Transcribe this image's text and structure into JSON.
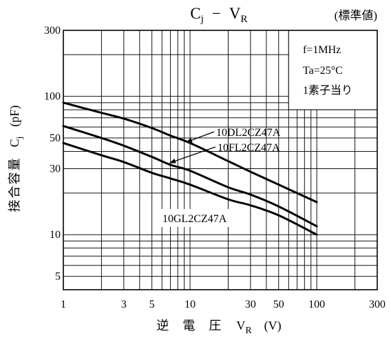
{
  "chart_data": {
    "type": "line",
    "title": {
      "symbol": "C",
      "symbol_sub": "j",
      "dash": "−",
      "variable": "V",
      "variable_sub": "R"
    },
    "subtitle": "(標準値)",
    "xlabel": {
      "text": "逆電圧",
      "symbol": "V",
      "symbol_sub": "R",
      "unit": "(V)"
    },
    "ylabel": {
      "text": "接合容量",
      "symbol": "C",
      "symbol_sub": "j",
      "unit": "(pF)"
    },
    "x_scale": "log",
    "y_scale": "log",
    "xlim": [
      1,
      300
    ],
    "ylim": [
      4,
      300
    ],
    "x_ticks": [
      1,
      3,
      5,
      10,
      30,
      50,
      100,
      300
    ],
    "y_ticks": [
      5,
      10,
      30,
      50,
      100,
      300
    ],
    "grid": true,
    "conditions": [
      "f=1MHz",
      "Ta=25°C",
      "1素子当り"
    ],
    "conditions_placement": "top-right",
    "series": [
      {
        "name": "10DL2CZ47A",
        "x": [
          1,
          2,
          3,
          5,
          7,
          10,
          20,
          30,
          50,
          100
        ],
        "y": [
          90,
          76,
          69,
          59,
          52,
          46,
          34,
          28.5,
          23,
          17.2
        ]
      },
      {
        "name": "10FL2CZ47A",
        "x": [
          1,
          2,
          3,
          5,
          7,
          10,
          20,
          30,
          50,
          100
        ],
        "y": [
          61,
          50,
          44,
          36.5,
          32,
          29,
          22,
          19.5,
          16,
          11.5
        ]
      },
      {
        "name": "10GL2CZ47A",
        "x": [
          1,
          2,
          3,
          5,
          7,
          10,
          20,
          30,
          50,
          100
        ],
        "y": [
          46,
          37.5,
          33.5,
          28,
          25.5,
          23,
          18,
          16.3,
          13.8,
          10
        ]
      }
    ]
  }
}
